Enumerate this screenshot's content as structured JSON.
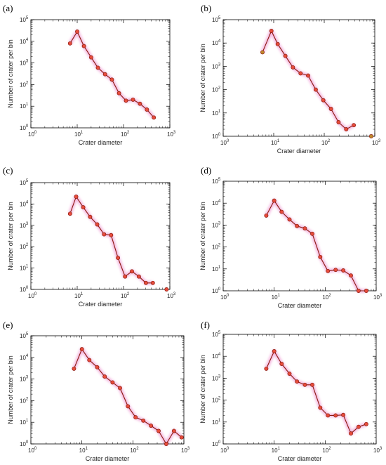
{
  "colors": {
    "line": "#8b1a0f",
    "marker_edge": "#8b1a0f",
    "marker_fill": "#e74c3c",
    "marker_fill_last": "#c08a2a",
    "glow": "#f2a6d8",
    "axis": "#000000"
  },
  "chart_data": [
    {
      "panel": "(a)",
      "type": "line",
      "xscale": "log",
      "yscale": "log",
      "xlim": [
        1,
        1000
      ],
      "ylim": [
        1,
        100000
      ],
      "xlabel": "Crater diameter",
      "ylabel": "Number of crater per bin",
      "x": [
        7,
        10,
        14,
        20,
        28,
        40,
        56,
        80,
        113,
        160,
        226,
        320,
        452
      ],
      "y": [
        8000,
        28000,
        6000,
        1800,
        600,
        300,
        170,
        40,
        18,
        20,
        13,
        7,
        3
      ]
    },
    {
      "panel": "(b)",
      "type": "line",
      "xscale": "log",
      "yscale": "log",
      "xlim": [
        1,
        1000
      ],
      "ylim": [
        1,
        100000
      ],
      "xlabel": "Crater diameter",
      "ylabel": "Number of crater per bin",
      "x": [
        6,
        9,
        12,
        17,
        24,
        34,
        48,
        68,
        96,
        136,
        192,
        272,
        384
      ],
      "y": [
        4000,
        33000,
        9000,
        2800,
        900,
        500,
        400,
        100,
        35,
        15,
        4,
        2,
        3
      ],
      "extra_point": {
        "x": 850,
        "y": 1
      }
    },
    {
      "panel": "(c)",
      "type": "line",
      "xscale": "log",
      "yscale": "log",
      "xlim": [
        1,
        1000
      ],
      "ylim": [
        1,
        100000
      ],
      "xlabel": "Crater diameter",
      "ylabel": "Number of crater per bin",
      "x": [
        7,
        9.5,
        13.5,
        19,
        27,
        38,
        54,
        76,
        108,
        152,
        215,
        304,
        430
      ],
      "y": [
        3500,
        22000,
        7000,
        2500,
        1100,
        380,
        350,
        30,
        4,
        7,
        4,
        2,
        2
      ],
      "extra_point": {
        "x": 850,
        "y": 1
      }
    },
    {
      "panel": "(d)",
      "type": "line",
      "xscale": "log",
      "yscale": "log",
      "xlim": [
        1,
        1000
      ],
      "ylim": [
        1,
        100000
      ],
      "xlabel": "Crater diameter",
      "ylabel": "Number of crater per bin",
      "x": [
        7,
        10,
        14,
        20,
        28,
        40,
        56,
        80,
        113,
        160,
        226,
        320,
        452,
        640
      ],
      "y": [
        2700,
        13000,
        4000,
        1800,
        900,
        700,
        400,
        35,
        8,
        9,
        8.5,
        5,
        1,
        1
      ]
    },
    {
      "panel": "(e)",
      "type": "line",
      "xscale": "log",
      "yscale": "log",
      "xlim": [
        1,
        1000
      ],
      "ylim": [
        1,
        100000
      ],
      "xlabel": "Crater diameter",
      "ylabel": "Number of crater per bin",
      "x": [
        7,
        10,
        14,
        20,
        28,
        40,
        56,
        80,
        113,
        160,
        226,
        320,
        452,
        640,
        905
      ],
      "y": [
        3000,
        24000,
        7500,
        3500,
        1300,
        700,
        380,
        55,
        17,
        12,
        7,
        4,
        1,
        4,
        2
      ]
    },
    {
      "panel": "(f)",
      "type": "line",
      "xscale": "log",
      "yscale": "log",
      "xlim": [
        1,
        1000
      ],
      "ylim": [
        1,
        100000
      ],
      "xlabel": "Crater diameter",
      "ylabel": "Number of crater per bin",
      "x": [
        7,
        10,
        14,
        20,
        28,
        40,
        56,
        80,
        113,
        160,
        226,
        320,
        452,
        640
      ],
      "y": [
        2700,
        17000,
        4500,
        1600,
        700,
        500,
        500,
        45,
        20,
        20,
        21,
        3,
        6,
        8
      ]
    }
  ]
}
